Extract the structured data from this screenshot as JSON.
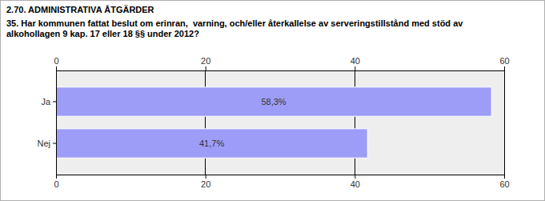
{
  "chart_data": {
    "type": "bar",
    "title": "2.70. ADMINISTRATIVA ÅTGÄRDER",
    "subtitle": "35. Har kommunen fattat beslut om erinran,  varning, och/eller återkallelse av serveringstillstånd med stöd av alkohollagen 9 kap. 17 eller 18 §§ under 2012?",
    "categories": [
      "Ja",
      "Nej"
    ],
    "values": [
      58.3,
      41.7
    ],
    "value_labels": [
      "58,3%",
      "41,7%"
    ],
    "color": "#9d9df7",
    "orientation": "horizontal",
    "data_labels": true,
    "grid": true,
    "xlim": [
      0,
      60
    ],
    "xticks": [
      0,
      20,
      40,
      60
    ]
  }
}
